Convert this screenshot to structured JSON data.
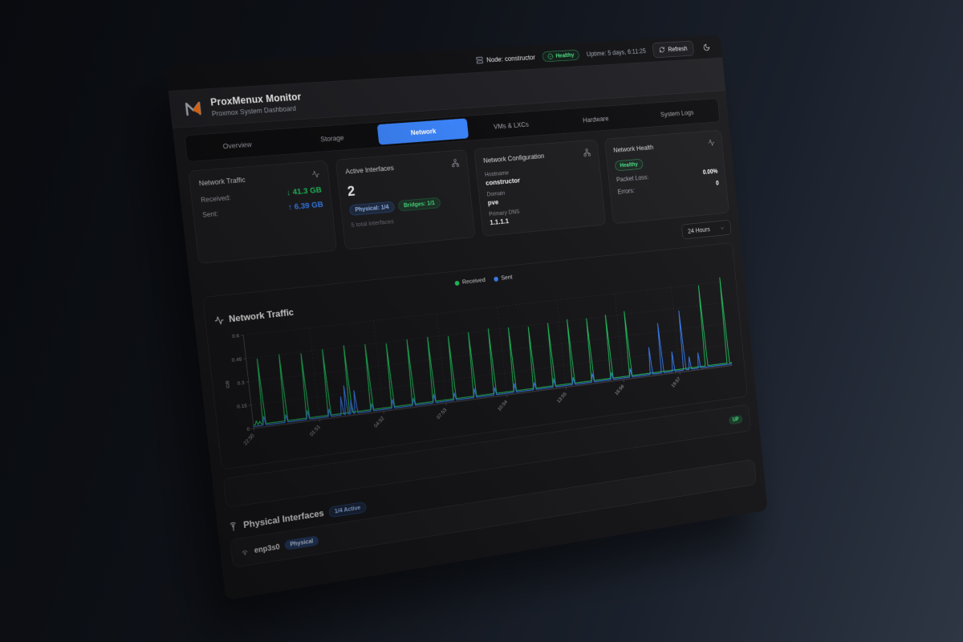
{
  "topbar": {
    "node_label": "Node: constructor",
    "health_badge": "Healthy",
    "uptime": "Uptime: 5 days, 6:11:25",
    "refresh_label": "Refresh"
  },
  "header": {
    "title": "ProxMenux Monitor",
    "subtitle": "Proxmox System Dashboard"
  },
  "tabs": [
    {
      "label": "Overview",
      "active": false
    },
    {
      "label": "Storage",
      "active": false
    },
    {
      "label": "Network",
      "active": true
    },
    {
      "label": "VMs & LXCs",
      "active": false
    },
    {
      "label": "Hardware",
      "active": false
    },
    {
      "label": "System Logs",
      "active": false
    }
  ],
  "cards": {
    "traffic": {
      "title": "Network Traffic",
      "received_label": "Received:",
      "received_value": "↓ 41.3 GB",
      "sent_label": "Sent:",
      "sent_value": "↑ 6.39 GB"
    },
    "interfaces": {
      "title": "Active Interfaces",
      "count": "2",
      "physical_badge": "Physical: 1/4",
      "bridges_badge": "Bridges: 1/1",
      "total": "5 total interfaces"
    },
    "config": {
      "title": "Network Configuration",
      "fields": [
        {
          "label": "Hostname",
          "value": "constructor"
        },
        {
          "label": "Domain",
          "value": "pve"
        },
        {
          "label": "Primary DNS",
          "value": "1.1.1.1"
        }
      ]
    },
    "health": {
      "title": "Network Health",
      "status": "Healthy",
      "packet_loss_label": "Packet Loss:",
      "packet_loss_value": "0.00%",
      "errors_label": "Errors:",
      "errors_value": "0"
    }
  },
  "time_range": {
    "selected": "24 Hours"
  },
  "chart_data": {
    "type": "line",
    "title": "Network Traffic",
    "ylabel": "GB",
    "ylim": [
      0,
      0.6
    ],
    "yticks": [
      0,
      0.15,
      0.3,
      0.45,
      0.6
    ],
    "x_hours": 24,
    "xticks": [
      {
        "t": 0,
        "label": "22:50"
      },
      {
        "t": 3.02,
        "label": "01:51"
      },
      {
        "t": 6.03,
        "label": "04:52"
      },
      {
        "t": 9.05,
        "label": "07:53"
      },
      {
        "t": 12.07,
        "label": "10:54"
      },
      {
        "t": 15.08,
        "label": "13:55"
      },
      {
        "t": 18.1,
        "label": "16:56"
      },
      {
        "t": 21.12,
        "label": "19:57"
      }
    ],
    "legend": [
      "Received",
      "Sent"
    ],
    "legend_position": "top-center",
    "grid": "dashed",
    "series": [
      {
        "name": "Received",
        "color": "#22c55e",
        "baseline": 0.02,
        "spikes": [
          [
            0.15,
            0.045
          ],
          [
            0.3,
            0.04
          ],
          [
            0.5,
            0.44
          ],
          [
            1.5,
            0.45
          ],
          [
            2.5,
            0.44
          ],
          [
            3.5,
            0.45
          ],
          [
            4.5,
            0.46
          ],
          [
            5.5,
            0.45
          ],
          [
            6.5,
            0.44
          ],
          [
            7.5,
            0.45
          ],
          [
            8.5,
            0.45
          ],
          [
            9.5,
            0.44
          ],
          [
            10.5,
            0.45
          ],
          [
            11.5,
            0.46
          ],
          [
            12.5,
            0.45
          ],
          [
            13.5,
            0.44
          ],
          [
            14.5,
            0.45
          ],
          [
            15.5,
            0.46
          ],
          [
            16.5,
            0.45
          ],
          [
            17.5,
            0.46
          ],
          [
            18.5,
            0.47
          ],
          [
            22.6,
            0.59
          ],
          [
            23.8,
            0.63
          ]
        ]
      },
      {
        "name": "Sent",
        "color": "#3b82f6",
        "baseline": 0.012,
        "spikes": [
          [
            0.5,
            0.07
          ],
          [
            1.5,
            0.06
          ],
          [
            2.5,
            0.07
          ],
          [
            3.5,
            0.06
          ],
          [
            4.1,
            0.13
          ],
          [
            4.3,
            0.2
          ],
          [
            4.55,
            0.1
          ],
          [
            4.75,
            0.16
          ],
          [
            5.5,
            0.06
          ],
          [
            6.5,
            0.07
          ],
          [
            7.5,
            0.06
          ],
          [
            8.5,
            0.07
          ],
          [
            9.5,
            0.06
          ],
          [
            10.5,
            0.07
          ],
          [
            11.5,
            0.06
          ],
          [
            12.5,
            0.07
          ],
          [
            13.5,
            0.06
          ],
          [
            14.5,
            0.07
          ],
          [
            15.5,
            0.06
          ],
          [
            16.5,
            0.07
          ],
          [
            17.5,
            0.06
          ],
          [
            18.5,
            0.07
          ],
          [
            19.6,
            0.2
          ],
          [
            20.2,
            0.36
          ],
          [
            20.8,
            0.15
          ],
          [
            21.4,
            0.43
          ],
          [
            21.7,
            0.1
          ],
          [
            22.2,
            0.12
          ]
        ]
      }
    ]
  },
  "bridge_row": {
    "status": "UP"
  },
  "physical_section": {
    "title": "Physical Interfaces",
    "active_badge": "1/4 Active",
    "rows": [
      {
        "name": "enp3s0",
        "type_badge": "Physical"
      }
    ]
  }
}
